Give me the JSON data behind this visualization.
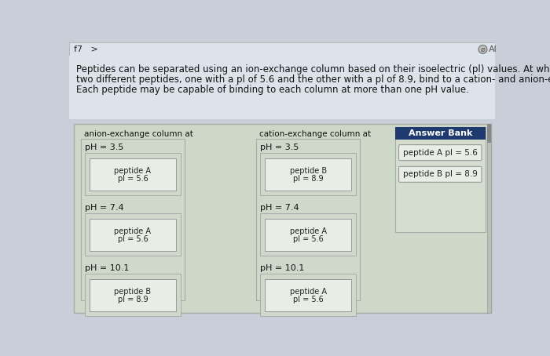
{
  "bg_color": "#c8cfd8",
  "nav_bg": "#dde3ea",
  "nav_text": "f7   >",
  "nav_right_circle_color": "#c8cfd8",
  "header_text_line1": "Peptides can be separated using an ion-exchange column based on their isoelectric (pl) values. At which pH values would",
  "header_text_line2": "two different peptides, one with a pl of 5.6 and the other with a pl of 8.9, bind to a cation- and anion-exchange column?",
  "header_text_line3": "Each peptide may be capable of binding to each column at more than one pH value.",
  "main_box_bg": "#cdd8c8",
  "main_box_border": "#aaaaaa",
  "col_box_bg": "#d0d8cc",
  "col_box_border": "#aaaaaa",
  "anion_header": "anion-exchange column at",
  "cation_header": "cation-exchange column at",
  "card_bg": "#e8ede5",
  "card_border": "#999999",
  "answer_bank_header_bg": "#1e3a6e",
  "answer_bank_header_text": "Answer Bank",
  "answer_bank_bg": "#d5dcd0",
  "answer_bank_border": "#aaaaaa",
  "answer_card_bg": "#e8ede5",
  "answer_card_border": "#999999",
  "anion_sections": [
    {
      "ph": "pH = 3.5",
      "line1": "peptide A",
      "line2": "pl = 5.6"
    },
    {
      "ph": "pH = 7.4",
      "line1": "peptide A",
      "line2": "pl = 5.6"
    },
    {
      "ph": "pH = 10.1",
      "line1": "peptide B",
      "line2": "pl = 8.9"
    }
  ],
  "cation_sections": [
    {
      "ph": "pH = 3.5",
      "line1": "peptide B",
      "line2": "pl = 8.9"
    },
    {
      "ph": "pH = 7.4",
      "line1": "peptide A",
      "line2": "pl = 5.6"
    },
    {
      "ph": "pH = 10.1",
      "line1": "peptide A",
      "line2": "pl = 5.6"
    }
  ],
  "answer_bank_cards": [
    "peptide A pl = 5.6",
    "peptide B pl = 8.9"
  ]
}
